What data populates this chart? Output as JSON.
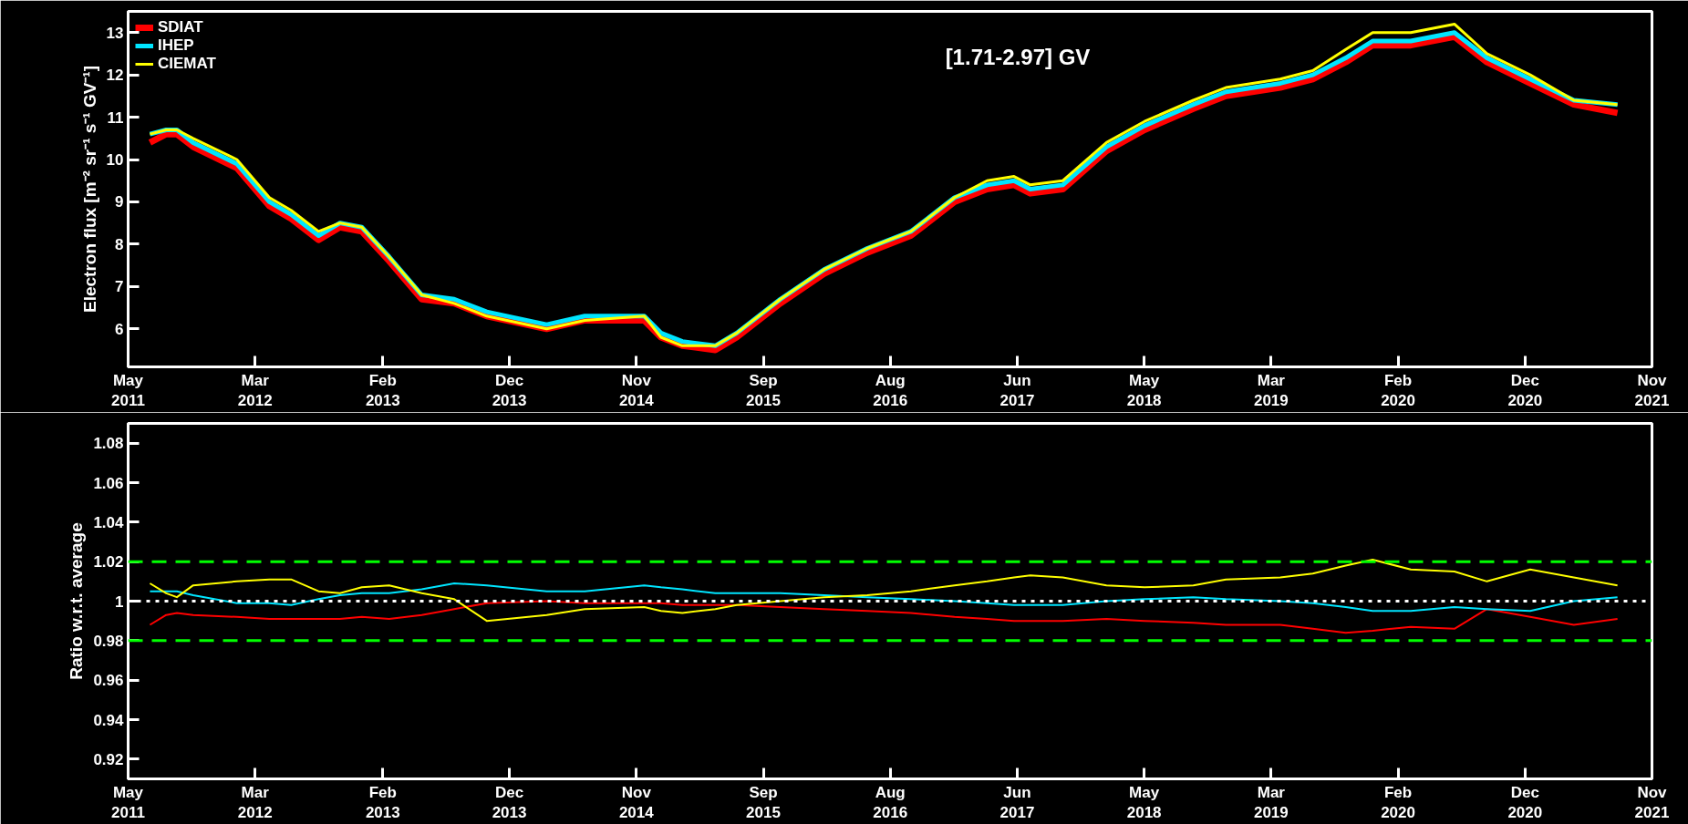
{
  "chart_data": [
    {
      "type": "line",
      "title": "[1.71-2.97] GV",
      "ylabel": "Electron flux [m⁻² sr⁻¹ s⁻¹ GV⁻¹]",
      "legend": "top left",
      "grid": false,
      "marker": "none",
      "line_style": "solid",
      "x": [
        "2011-06-25",
        "2011-08-05",
        "2011-09-01",
        "2011-10-12",
        "2012-01-30",
        "2012-04-21",
        "2012-06-15",
        "2012-08-23",
        "2012-10-16",
        "2012-12-10",
        "2013-02-17",
        "2013-05-10",
        "2013-07-31",
        "2013-10-21",
        "2014-03-21",
        "2014-06-25",
        "2014-11-22",
        "2015-01-03",
        "2015-02-26",
        "2015-05-20",
        "2015-07-13",
        "2015-10-31",
        "2016-02-18",
        "2016-06-06",
        "2016-09-24",
        "2017-01-12",
        "2017-04-04",
        "2017-06-11",
        "2017-07-22",
        "2017-10-12",
        "2018-01-30",
        "2018-05-06",
        "2018-09-06",
        "2018-11-27",
        "2019-04-13",
        "2019-07-04",
        "2019-09-25",
        "2019-12-02",
        "2020-03-07",
        "2020-06-25",
        "2020-09-15",
        "2021-01-02",
        "2021-04-22",
        "2021-08-10"
      ],
      "xlim": [
        "2011-05-01",
        "2021-11-05"
      ],
      "xticks": [
        {
          "value": "2011-05-01",
          "label": "May\n2011"
        },
        {
          "value": "2012-03-16",
          "label": "Mar\n2012"
        },
        {
          "value": "2013-02-01",
          "label": "Feb\n2013"
        },
        {
          "value": "2013-12-17",
          "label": "Dec\n2013"
        },
        {
          "value": "2014-11-02",
          "label": "Nov\n2014"
        },
        {
          "value": "2015-09-18",
          "label": "Sep\n2015"
        },
        {
          "value": "2016-08-03",
          "label": "Aug\n2016"
        },
        {
          "value": "2017-06-19",
          "label": "Jun\n2017"
        },
        {
          "value": "2018-05-05",
          "label": "May\n2018"
        },
        {
          "value": "2019-03-21",
          "label": "Mar\n2019"
        },
        {
          "value": "2020-02-04",
          "label": "Feb\n2020"
        },
        {
          "value": "2020-12-20",
          "label": "Dec\n2020"
        },
        {
          "value": "2021-11-05",
          "label": "Nov\n2021"
        }
      ],
      "ylim": [
        5.1,
        13.5
      ],
      "yticks": [
        6,
        7,
        8,
        9,
        10,
        11,
        12,
        13
      ],
      "series": [
        {
          "name": "SDIAT",
          "color": "#ff0000",
          "values": [
            10.4,
            10.6,
            10.6,
            10.3,
            9.8,
            8.9,
            8.6,
            8.1,
            8.4,
            8.3,
            7.6,
            6.7,
            6.6,
            6.3,
            6.0,
            6.2,
            6.2,
            5.8,
            5.6,
            5.5,
            5.8,
            6.6,
            7.3,
            7.8,
            8.2,
            9.0,
            9.3,
            9.4,
            9.2,
            9.3,
            10.2,
            10.7,
            11.2,
            11.5,
            11.7,
            11.9,
            12.3,
            12.7,
            12.7,
            12.9,
            12.3,
            11.8,
            11.3,
            11.1
          ]
        },
        {
          "name": "IHEP",
          "color": "#00e5ff",
          "values": [
            10.6,
            10.7,
            10.7,
            10.4,
            9.9,
            9.0,
            8.7,
            8.2,
            8.5,
            8.4,
            7.7,
            6.8,
            6.7,
            6.4,
            6.1,
            6.3,
            6.3,
            5.9,
            5.7,
            5.6,
            5.9,
            6.7,
            7.4,
            7.9,
            8.3,
            9.1,
            9.4,
            9.5,
            9.3,
            9.4,
            10.3,
            10.8,
            11.3,
            11.6,
            11.8,
            12.0,
            12.4,
            12.8,
            12.8,
            13.0,
            12.4,
            11.9,
            11.4,
            11.3
          ]
        },
        {
          "name": "CIEMAT",
          "color": "#ffff00",
          "values": [
            10.6,
            10.7,
            10.7,
            10.5,
            10.0,
            9.1,
            8.8,
            8.3,
            8.5,
            8.4,
            7.7,
            6.8,
            6.6,
            6.3,
            6.0,
            6.2,
            6.3,
            5.8,
            5.6,
            5.6,
            5.9,
            6.7,
            7.4,
            7.9,
            8.3,
            9.1,
            9.5,
            9.6,
            9.4,
            9.5,
            10.4,
            10.9,
            11.4,
            11.7,
            11.9,
            12.1,
            12.6,
            13.0,
            13.0,
            13.2,
            12.5,
            12.0,
            11.4,
            11.3
          ]
        }
      ]
    },
    {
      "type": "line",
      "ylabel": "Ratio w.r.t. average",
      "legend": false,
      "grid": false,
      "marker": "none",
      "line_style": "solid",
      "x": [
        "2011-06-25",
        "2011-08-05",
        "2011-09-01",
        "2011-10-12",
        "2012-01-30",
        "2012-04-21",
        "2012-06-15",
        "2012-08-23",
        "2012-10-16",
        "2012-12-10",
        "2013-02-17",
        "2013-05-10",
        "2013-07-31",
        "2013-10-21",
        "2014-03-21",
        "2014-06-25",
        "2014-11-22",
        "2015-01-03",
        "2015-02-26",
        "2015-05-20",
        "2015-07-13",
        "2015-10-31",
        "2016-02-18",
        "2016-06-06",
        "2016-09-24",
        "2017-01-12",
        "2017-04-04",
        "2017-06-11",
        "2017-07-22",
        "2017-10-12",
        "2018-01-30",
        "2018-05-06",
        "2018-09-06",
        "2018-11-27",
        "2019-04-13",
        "2019-07-04",
        "2019-09-25",
        "2019-12-02",
        "2020-03-07",
        "2020-06-25",
        "2020-09-15",
        "2021-01-02",
        "2021-04-22",
        "2021-08-10"
      ],
      "xlim": [
        "2011-05-01",
        "2021-11-05"
      ],
      "xticks": [
        {
          "value": "2011-05-01",
          "label": "May\n2011"
        },
        {
          "value": "2012-03-16",
          "label": "Mar\n2012"
        },
        {
          "value": "2013-02-01",
          "label": "Feb\n2013"
        },
        {
          "value": "2013-12-17",
          "label": "Dec\n2013"
        },
        {
          "value": "2014-11-02",
          "label": "Nov\n2014"
        },
        {
          "value": "2015-09-18",
          "label": "Sep\n2015"
        },
        {
          "value": "2016-08-03",
          "label": "Aug\n2016"
        },
        {
          "value": "2017-06-19",
          "label": "Jun\n2017"
        },
        {
          "value": "2018-05-05",
          "label": "May\n2018"
        },
        {
          "value": "2019-03-21",
          "label": "Mar\n2019"
        },
        {
          "value": "2020-02-04",
          "label": "Feb\n2020"
        },
        {
          "value": "2020-12-20",
          "label": "Dec\n2020"
        },
        {
          "value": "2021-11-05",
          "label": "Nov\n2021"
        }
      ],
      "ylim": [
        0.91,
        1.09
      ],
      "yticks": [
        0.92,
        0.94,
        0.96,
        0.98,
        {
          "value": 1.0,
          "label": "1"
        },
        1.02,
        1.04,
        1.06,
        1.08
      ],
      "ref_lines": [
        {
          "axis": "y",
          "value": 1.02,
          "color": "#00ff00",
          "line_style": "dashed"
        },
        {
          "axis": "y",
          "value": 1.0,
          "color": "#ffffff",
          "line_style": "dotted"
        },
        {
          "axis": "y",
          "value": 0.98,
          "color": "#00ff00",
          "line_style": "dashed"
        }
      ],
      "series": [
        {
          "color": "#ff0000",
          "values": [
            0.988,
            0.993,
            0.994,
            0.993,
            0.992,
            0.991,
            0.991,
            0.991,
            0.991,
            0.992,
            0.991,
            0.993,
            0.996,
            0.999,
            1.0,
            0.999,
            0.999,
            0.999,
            0.998,
            0.998,
            0.998,
            0.997,
            0.996,
            0.995,
            0.994,
            0.992,
            0.991,
            0.99,
            0.99,
            0.99,
            0.991,
            0.99,
            0.989,
            0.988,
            0.988,
            0.986,
            0.984,
            0.985,
            0.987,
            0.986,
            0.996,
            0.992,
            0.988,
            0.991
          ]
        },
        {
          "color": "#00e5ff",
          "values": [
            1.005,
            1.005,
            1.005,
            1.003,
            0.999,
            0.999,
            0.998,
            1.001,
            1.003,
            1.004,
            1.004,
            1.006,
            1.009,
            1.008,
            1.005,
            1.005,
            1.008,
            1.007,
            1.006,
            1.004,
            1.004,
            1.004,
            1.003,
            1.002,
            1.001,
            1.0,
            0.999,
            0.998,
            0.998,
            0.998,
            1.0,
            1.001,
            1.002,
            1.001,
            1.0,
            0.999,
            0.997,
            0.995,
            0.995,
            0.997,
            0.996,
            0.995,
            1.0,
            1.002
          ]
        },
        {
          "color": "#ffff00",
          "values": [
            1.009,
            1.004,
            1.002,
            1.008,
            1.01,
            1.011,
            1.011,
            1.005,
            1.004,
            1.007,
            1.008,
            1.004,
            1.001,
            0.99,
            0.993,
            0.996,
            0.997,
            0.995,
            0.994,
            0.996,
            0.998,
            1.0,
            1.002,
            1.003,
            1.005,
            1.008,
            1.01,
            1.012,
            1.013,
            1.012,
            1.008,
            1.007,
            1.008,
            1.011,
            1.012,
            1.014,
            1.018,
            1.021,
            1.016,
            1.015,
            1.01,
            1.016,
            1.012,
            1.008
          ]
        }
      ]
    }
  ]
}
